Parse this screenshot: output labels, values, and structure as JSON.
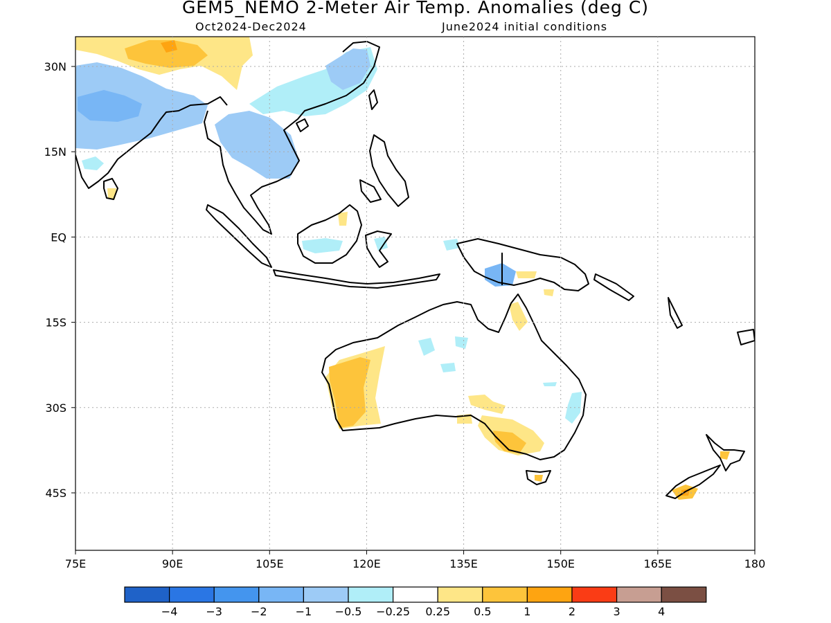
{
  "title": "GEM5_NEMO 2-Meter Air Temp. Anomalies (deg C)",
  "subtitle_left": "Oct2024-Dec2024",
  "subtitle_right": "June2024 initial conditions",
  "map": {
    "lon_range": [
      75,
      180
    ],
    "lat_range": [
      -55,
      35
    ],
    "lon_ticks": [
      "75E",
      "90E",
      "105E",
      "120E",
      "135E",
      "150E",
      "165E",
      "180"
    ],
    "lat_ticks": [
      "30N",
      "15N",
      "EQ",
      "15S",
      "30S",
      "45S"
    ],
    "grid": "dotted"
  },
  "colorbar": {
    "colors": [
      "#1f62c8",
      "#2a76e4",
      "#4495ee",
      "#78b6f5",
      "#9dcbf6",
      "#b0eef8",
      "#ffffff",
      "#fee687",
      "#fdc43b",
      "#fea411",
      "#fa3c15",
      "#c79e92",
      "#7b4f43"
    ],
    "labels": [
      "-4",
      "-3",
      "-2",
      "-1",
      "-0.5",
      "-0.25",
      "0.25",
      "0.5",
      "1",
      "2",
      "3",
      "4"
    ]
  }
}
